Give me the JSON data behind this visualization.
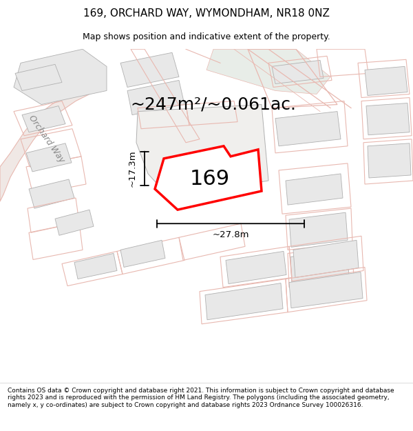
{
  "title_line1": "169, ORCHARD WAY, WYMONDHAM, NR18 0NZ",
  "title_line2": "Map shows position and indicative extent of the property.",
  "footer_text": "Contains OS data © Crown copyright and database right 2021. This information is subject to Crown copyright and database rights 2023 and is reproduced with the permission of HM Land Registry. The polygons (including the associated geometry, namely x, y co-ordinates) are subject to Crown copyright and database rights 2023 Ordnance Survey 100026316.",
  "area_label": "~247m²/~0.061ac.",
  "property_number": "169",
  "dim_width": "~27.8m",
  "dim_height": "~17.3m",
  "street_label": "Orchard Way",
  "map_bg": "#f7f6f4",
  "green_fill": "#e8ede8",
  "plot_fill": "#e8e8e8",
  "road_color": "#e8b8b0",
  "plot_line_color": "#e8b8b0",
  "boundary_color": "#b0b0b0",
  "highlight_color": "#ff0000",
  "title_fontsize": 11,
  "subtitle_fontsize": 9,
  "footer_fontsize": 6.5,
  "area_fontsize": 18,
  "number_fontsize": 22,
  "dim_fontsize": 9.5
}
